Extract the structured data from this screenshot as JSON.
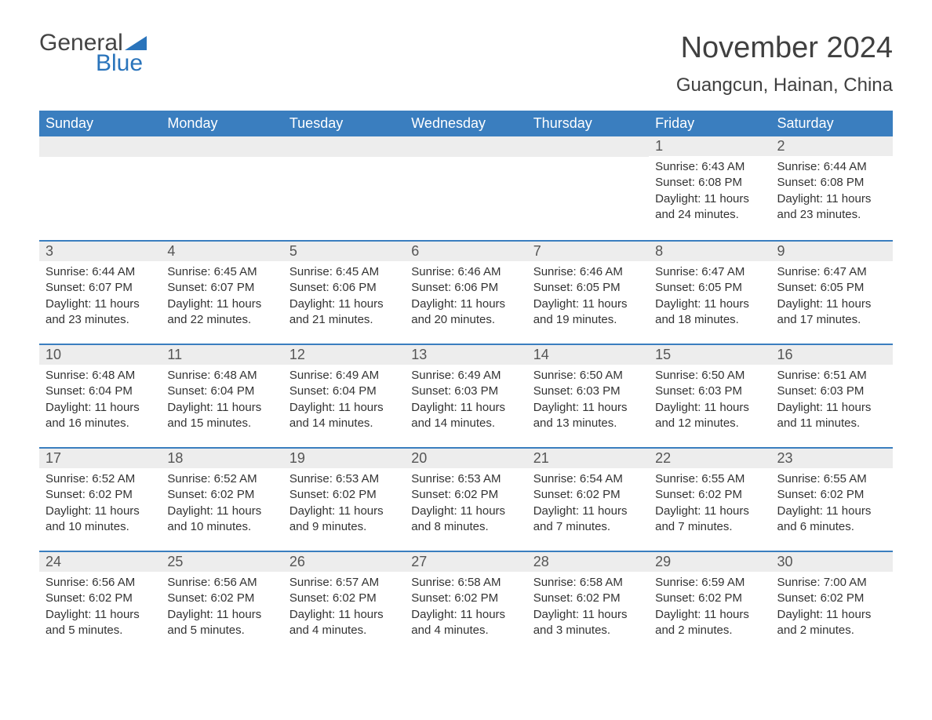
{
  "logo": {
    "text1": "General",
    "text2": "Blue",
    "triangle_color": "#2a74bb"
  },
  "title": "November 2024",
  "location": "Guangcun, Hainan, China",
  "colors": {
    "header_bg": "#3a7ebf",
    "header_text": "#ffffff",
    "daynum_bg": "#ededed",
    "daynum_text": "#555555",
    "body_text": "#333333",
    "row_border": "#3a7ebf",
    "page_bg": "#ffffff"
  },
  "typography": {
    "month_title_size_pt": 28,
    "location_size_pt": 18,
    "weekday_size_pt": 14,
    "daynum_size_pt": 14,
    "body_size_pt": 11
  },
  "calendar": {
    "type": "table",
    "columns": [
      "Sunday",
      "Monday",
      "Tuesday",
      "Wednesday",
      "Thursday",
      "Friday",
      "Saturday"
    ],
    "weeks": [
      [
        null,
        null,
        null,
        null,
        null,
        {
          "day": "1",
          "sunrise": "6:43 AM",
          "sunset": "6:08 PM",
          "daylight": "11 hours and 24 minutes."
        },
        {
          "day": "2",
          "sunrise": "6:44 AM",
          "sunset": "6:08 PM",
          "daylight": "11 hours and 23 minutes."
        }
      ],
      [
        {
          "day": "3",
          "sunrise": "6:44 AM",
          "sunset": "6:07 PM",
          "daylight": "11 hours and 23 minutes."
        },
        {
          "day": "4",
          "sunrise": "6:45 AM",
          "sunset": "6:07 PM",
          "daylight": "11 hours and 22 minutes."
        },
        {
          "day": "5",
          "sunrise": "6:45 AM",
          "sunset": "6:06 PM",
          "daylight": "11 hours and 21 minutes."
        },
        {
          "day": "6",
          "sunrise": "6:46 AM",
          "sunset": "6:06 PM",
          "daylight": "11 hours and 20 minutes."
        },
        {
          "day": "7",
          "sunrise": "6:46 AM",
          "sunset": "6:05 PM",
          "daylight": "11 hours and 19 minutes."
        },
        {
          "day": "8",
          "sunrise": "6:47 AM",
          "sunset": "6:05 PM",
          "daylight": "11 hours and 18 minutes."
        },
        {
          "day": "9",
          "sunrise": "6:47 AM",
          "sunset": "6:05 PM",
          "daylight": "11 hours and 17 minutes."
        }
      ],
      [
        {
          "day": "10",
          "sunrise": "6:48 AM",
          "sunset": "6:04 PM",
          "daylight": "11 hours and 16 minutes."
        },
        {
          "day": "11",
          "sunrise": "6:48 AM",
          "sunset": "6:04 PM",
          "daylight": "11 hours and 15 minutes."
        },
        {
          "day": "12",
          "sunrise": "6:49 AM",
          "sunset": "6:04 PM",
          "daylight": "11 hours and 14 minutes."
        },
        {
          "day": "13",
          "sunrise": "6:49 AM",
          "sunset": "6:03 PM",
          "daylight": "11 hours and 14 minutes."
        },
        {
          "day": "14",
          "sunrise": "6:50 AM",
          "sunset": "6:03 PM",
          "daylight": "11 hours and 13 minutes."
        },
        {
          "day": "15",
          "sunrise": "6:50 AM",
          "sunset": "6:03 PM",
          "daylight": "11 hours and 12 minutes."
        },
        {
          "day": "16",
          "sunrise": "6:51 AM",
          "sunset": "6:03 PM",
          "daylight": "11 hours and 11 minutes."
        }
      ],
      [
        {
          "day": "17",
          "sunrise": "6:52 AM",
          "sunset": "6:02 PM",
          "daylight": "11 hours and 10 minutes."
        },
        {
          "day": "18",
          "sunrise": "6:52 AM",
          "sunset": "6:02 PM",
          "daylight": "11 hours and 10 minutes."
        },
        {
          "day": "19",
          "sunrise": "6:53 AM",
          "sunset": "6:02 PM",
          "daylight": "11 hours and 9 minutes."
        },
        {
          "day": "20",
          "sunrise": "6:53 AM",
          "sunset": "6:02 PM",
          "daylight": "11 hours and 8 minutes."
        },
        {
          "day": "21",
          "sunrise": "6:54 AM",
          "sunset": "6:02 PM",
          "daylight": "11 hours and 7 minutes."
        },
        {
          "day": "22",
          "sunrise": "6:55 AM",
          "sunset": "6:02 PM",
          "daylight": "11 hours and 7 minutes."
        },
        {
          "day": "23",
          "sunrise": "6:55 AM",
          "sunset": "6:02 PM",
          "daylight": "11 hours and 6 minutes."
        }
      ],
      [
        {
          "day": "24",
          "sunrise": "6:56 AM",
          "sunset": "6:02 PM",
          "daylight": "11 hours and 5 minutes."
        },
        {
          "day": "25",
          "sunrise": "6:56 AM",
          "sunset": "6:02 PM",
          "daylight": "11 hours and 5 minutes."
        },
        {
          "day": "26",
          "sunrise": "6:57 AM",
          "sunset": "6:02 PM",
          "daylight": "11 hours and 4 minutes."
        },
        {
          "day": "27",
          "sunrise": "6:58 AM",
          "sunset": "6:02 PM",
          "daylight": "11 hours and 4 minutes."
        },
        {
          "day": "28",
          "sunrise": "6:58 AM",
          "sunset": "6:02 PM",
          "daylight": "11 hours and 3 minutes."
        },
        {
          "day": "29",
          "sunrise": "6:59 AM",
          "sunset": "6:02 PM",
          "daylight": "11 hours and 2 minutes."
        },
        {
          "day": "30",
          "sunrise": "7:00 AM",
          "sunset": "6:02 PM",
          "daylight": "11 hours and 2 minutes."
        }
      ]
    ]
  },
  "labels": {
    "sunrise": "Sunrise: ",
    "sunset": "Sunset: ",
    "daylight": "Daylight: "
  }
}
